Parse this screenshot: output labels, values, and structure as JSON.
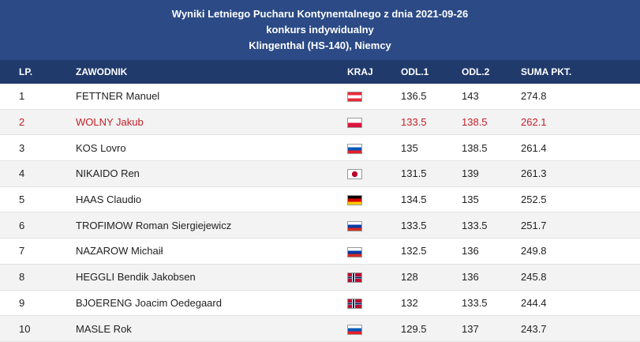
{
  "header": {
    "title_line1": "Wyniki Letniego Pucharu Kontynentalnego z dnia 2021-09-26",
    "title_line2": "konkurs indywidualny",
    "title_line3": "Klingenthal (HS-140), Niemcy"
  },
  "table": {
    "columns": {
      "lp": "LP.",
      "name": "ZAWODNIK",
      "country": "KRAJ",
      "jump1": "ODL.1",
      "jump2": "ODL.2",
      "total": "SUMA PKT."
    },
    "rows": [
      {
        "lp": "1",
        "name": "FETTNER Manuel",
        "flag": "austria-flag",
        "jump1": "136.5",
        "jump2": "143",
        "total": "274.8"
      },
      {
        "lp": "2",
        "name": "WOLNY Jakub",
        "flag": "poland-flag",
        "jump1": "133.5",
        "jump2": "138.5",
        "total": "262.1",
        "highlight": true
      },
      {
        "lp": "3",
        "name": "KOS Lovro",
        "flag": "slovenia-flag",
        "jump1": "135",
        "jump2": "138.5",
        "total": "261.4"
      },
      {
        "lp": "4",
        "name": "NIKAIDO Ren",
        "flag": "japan-flag",
        "jump1": "131.5",
        "jump2": "139",
        "total": "261.3"
      },
      {
        "lp": "5",
        "name": "HAAS Claudio",
        "flag": "germany-flag",
        "jump1": "134.5",
        "jump2": "135",
        "total": "252.5"
      },
      {
        "lp": "6",
        "name": "TROFIMOW Roman Siergiejewicz",
        "flag": "russia-flag",
        "jump1": "133.5",
        "jump2": "133.5",
        "total": "251.7"
      },
      {
        "lp": "7",
        "name": "NAZAROW Michaił",
        "flag": "russia-flag",
        "jump1": "132.5",
        "jump2": "136",
        "total": "249.8"
      },
      {
        "lp": "8",
        "name": "HEGGLI Bendik Jakobsen",
        "flag": "norway-flag",
        "jump1": "128",
        "jump2": "136",
        "total": "245.8"
      },
      {
        "lp": "9",
        "name": "BJOERENG Joacim Oedegaard",
        "flag": "norway-flag",
        "jump1": "132",
        "jump2": "133.5",
        "total": "244.4"
      },
      {
        "lp": "10",
        "name": "MASLE Rok",
        "flag": "slovenia-flag",
        "jump1": "129.5",
        "jump2": "137",
        "total": "243.7"
      }
    ]
  },
  "colors": {
    "header_bg": "#2b4a86",
    "column_header_bg": "#203a6b",
    "highlight": "#c5202a"
  }
}
